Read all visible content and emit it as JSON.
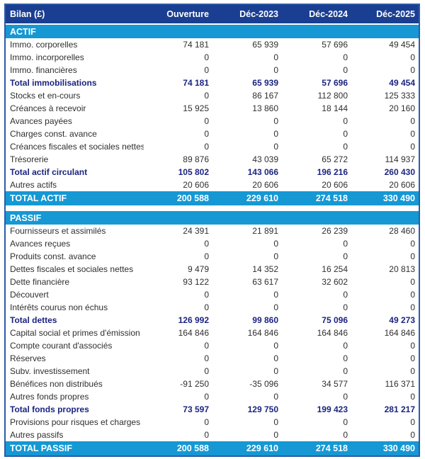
{
  "table": {
    "title": "Bilan (£)",
    "columns": [
      "Ouverture",
      "Déc-2023",
      "Déc-2024",
      "Déc-2025"
    ],
    "sections": [
      {
        "title": "ACTIF",
        "rows": [
          {
            "label": "Immo. corporelles",
            "values": [
              "74 181",
              "65 939",
              "57 696",
              "49 454"
            ],
            "bold": false
          },
          {
            "label": "Immo. incorporelles",
            "values": [
              "0",
              "0",
              "0",
              "0"
            ],
            "bold": false
          },
          {
            "label": "Immo. financières",
            "values": [
              "0",
              "0",
              "0",
              "0"
            ],
            "bold": false
          },
          {
            "label": "Total immobilisations",
            "values": [
              "74 181",
              "65 939",
              "57 696",
              "49 454"
            ],
            "bold": true
          },
          {
            "label": "Stocks et en-cours",
            "values": [
              "0",
              "86 167",
              "112 800",
              "125 333"
            ],
            "bold": false
          },
          {
            "label": "Créances à recevoir",
            "values": [
              "15 925",
              "13 860",
              "18 144",
              "20 160"
            ],
            "bold": false
          },
          {
            "label": "Avances payées",
            "values": [
              "0",
              "0",
              "0",
              "0"
            ],
            "bold": false
          },
          {
            "label": "Charges const. avance",
            "values": [
              "0",
              "0",
              "0",
              "0"
            ],
            "bold": false
          },
          {
            "label": "Créances fiscales et sociales nettes",
            "values": [
              "0",
              "0",
              "0",
              "0"
            ],
            "bold": false
          },
          {
            "label": "Trésorerie",
            "values": [
              "89 876",
              "43 039",
              "65 272",
              "114 937"
            ],
            "bold": false
          },
          {
            "label": "Total actif circulant",
            "values": [
              "105 802",
              "143 066",
              "196 216",
              "260 430"
            ],
            "bold": true
          },
          {
            "label": "Autres actifs",
            "values": [
              "20 606",
              "20 606",
              "20 606",
              "20 606"
            ],
            "bold": false
          }
        ],
        "total": {
          "label": "TOTAL ACTIF",
          "values": [
            "200 588",
            "229 610",
            "274 518",
            "330 490"
          ]
        }
      },
      {
        "title": "PASSIF",
        "rows": [
          {
            "label": "Fournisseurs et assimilés",
            "values": [
              "24 391",
              "21 891",
              "26 239",
              "28 460"
            ],
            "bold": false
          },
          {
            "label": "Avances reçues",
            "values": [
              "0",
              "0",
              "0",
              "0"
            ],
            "bold": false
          },
          {
            "label": "Produits const. avance",
            "values": [
              "0",
              "0",
              "0",
              "0"
            ],
            "bold": false
          },
          {
            "label": "Dettes fiscales et sociales nettes",
            "values": [
              "9 479",
              "14 352",
              "16 254",
              "20 813"
            ],
            "bold": false
          },
          {
            "label": "Dette financière",
            "values": [
              "93 122",
              "63 617",
              "32 602",
              "0"
            ],
            "bold": false
          },
          {
            "label": "Découvert",
            "values": [
              "0",
              "0",
              "0",
              "0"
            ],
            "bold": false
          },
          {
            "label": "Intérêts courus non échus",
            "values": [
              "0",
              "0",
              "0",
              "0"
            ],
            "bold": false
          },
          {
            "label": "Total dettes",
            "values": [
              "126 992",
              "99 860",
              "75 096",
              "49 273"
            ],
            "bold": true
          },
          {
            "label": "Capital social et primes d'émission",
            "values": [
              "164 846",
              "164 846",
              "164 846",
              "164 846"
            ],
            "bold": false
          },
          {
            "label": "Compte courant d'associés",
            "values": [
              "0",
              "0",
              "0",
              "0"
            ],
            "bold": false
          },
          {
            "label": "Réserves",
            "values": [
              "0",
              "0",
              "0",
              "0"
            ],
            "bold": false
          },
          {
            "label": "Subv. investissement",
            "values": [
              "0",
              "0",
              "0",
              "0"
            ],
            "bold": false
          },
          {
            "label": "Bénéfices non distribués",
            "values": [
              "-91 250",
              "-35 096",
              "34 577",
              "116 371"
            ],
            "bold": false
          },
          {
            "label": "Autres fonds propres",
            "values": [
              "0",
              "0",
              "0",
              "0"
            ],
            "bold": false
          },
          {
            "label": "Total fonds propres",
            "values": [
              "73 597",
              "129 750",
              "199 423",
              "281 217"
            ],
            "bold": true
          },
          {
            "label": "Provisions pour risques et charges",
            "values": [
              "0",
              "0",
              "0",
              "0"
            ],
            "bold": false
          },
          {
            "label": "Autres passifs",
            "values": [
              "0",
              "0",
              "0",
              "0"
            ],
            "bold": false
          }
        ],
        "total": {
          "label": "TOTAL PASSIF",
          "values": [
            "200 588",
            "229 610",
            "274 518",
            "330 490"
          ]
        }
      }
    ]
  },
  "colors": {
    "header_bg": "#1a3e91",
    "band_bg": "#1598d4",
    "subtotal_text": "#1b2480",
    "body_text": "#2f2f2f",
    "band_text": "#ffffff",
    "border": "#2b5ca9"
  }
}
